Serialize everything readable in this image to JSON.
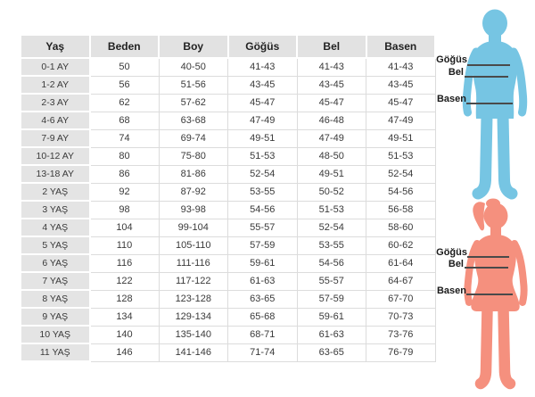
{
  "table": {
    "headers": [
      "Yaş",
      "Beden",
      "Boy",
      "Göğüs",
      "Bel",
      "Basen"
    ],
    "rows": [
      [
        "0-1 AY",
        "50",
        "40-50",
        "41-43",
        "41-43",
        "41-43"
      ],
      [
        "1-2 AY",
        "56",
        "51-56",
        "43-45",
        "43-45",
        "43-45"
      ],
      [
        "2-3 AY",
        "62",
        "57-62",
        "45-47",
        "45-47",
        "45-47"
      ],
      [
        "4-6 AY",
        "68",
        "63-68",
        "47-49",
        "46-48",
        "47-49"
      ],
      [
        "7-9 AY",
        "74",
        "69-74",
        "49-51",
        "47-49",
        "49-51"
      ],
      [
        "10-12 AY",
        "80",
        "75-80",
        "51-53",
        "48-50",
        "51-53"
      ],
      [
        "13-18 AY",
        "86",
        "81-86",
        "52-54",
        "49-51",
        "52-54"
      ],
      [
        "2 YAŞ",
        "92",
        "87-92",
        "53-55",
        "50-52",
        "54-56"
      ],
      [
        "3 YAŞ",
        "98",
        "93-98",
        "54-56",
        "51-53",
        "56-58"
      ],
      [
        "4 YAŞ",
        "104",
        "99-104",
        "55-57",
        "52-54",
        "58-60"
      ],
      [
        "5 YAŞ",
        "110",
        "105-110",
        "57-59",
        "53-55",
        "60-62"
      ],
      [
        "6 YAŞ",
        "116",
        "111-116",
        "59-61",
        "54-56",
        "61-64"
      ],
      [
        "7 YAŞ",
        "122",
        "117-122",
        "61-63",
        "55-57",
        "64-67"
      ],
      [
        "8 YAŞ",
        "128",
        "123-128",
        "63-65",
        "57-59",
        "67-70"
      ],
      [
        "9 YAŞ",
        "134",
        "129-134",
        "65-68",
        "59-61",
        "70-73"
      ],
      [
        "10 YAŞ",
        "140",
        "135-140",
        "68-71",
        "61-63",
        "73-76"
      ],
      [
        "11 YAŞ",
        "146",
        "141-146",
        "71-74",
        "63-65",
        "76-79"
      ]
    ]
  },
  "figures": {
    "boy": {
      "measurements": {
        "chest": "Göğüs",
        "waist": "Bel",
        "hip": "Basen"
      }
    },
    "girl": {
      "measurements": {
        "chest": "Göğüs",
        "waist": "Bel",
        "hip": "Basen"
      }
    }
  },
  "colors": {
    "boy_fill": "#76c5e3",
    "girl_fill": "#f5907e",
    "measure_line": "#4a4a4a",
    "header_bg": "#e2e2e2",
    "age_col_bg": "#e4e4e4",
    "cell_border": "#dcdcdc",
    "table_text": "#3a3a3a",
    "label_text": "#1a1a1a"
  }
}
